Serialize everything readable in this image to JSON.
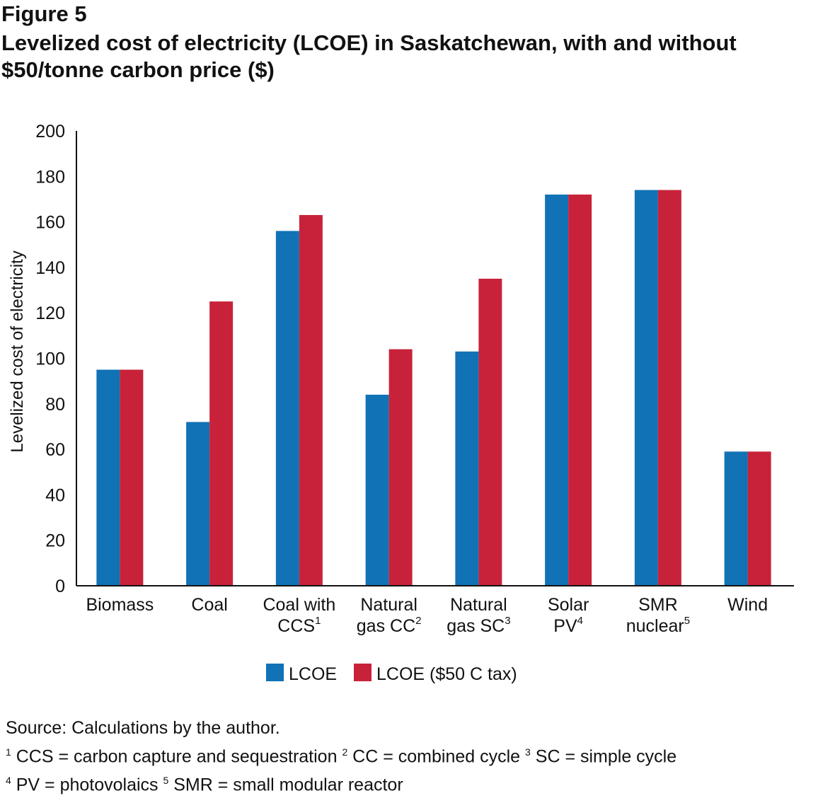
{
  "figure_label": "Figure 5",
  "chart_data": {
    "type": "bar",
    "title": "Levelized cost of electricity (LCOE) in Saskatchewan, with and without $50/tonne carbon price ($)",
    "ylabel": "Levelized cost of electricity",
    "xlabel": "",
    "ylim": [
      0,
      200
    ],
    "yticks": [
      0,
      20,
      40,
      60,
      80,
      100,
      120,
      140,
      160,
      180,
      200
    ],
    "categories": [
      {
        "lines": [
          "Biomass"
        ],
        "sup": ""
      },
      {
        "lines": [
          "Coal"
        ],
        "sup": ""
      },
      {
        "lines": [
          "Coal with",
          "CCS"
        ],
        "sup": "1"
      },
      {
        "lines": [
          "Natural",
          "gas CC"
        ],
        "sup": "2"
      },
      {
        "lines": [
          "Natural",
          "gas SC"
        ],
        "sup": "3"
      },
      {
        "lines": [
          "Solar",
          "PV"
        ],
        "sup": "4"
      },
      {
        "lines": [
          "SMR",
          "nuclear"
        ],
        "sup": "5"
      },
      {
        "lines": [
          "Wind"
        ],
        "sup": ""
      }
    ],
    "series": [
      {
        "name": "LCOE",
        "color": "#1172b6",
        "values": [
          95,
          72,
          156,
          84,
          103,
          172,
          174,
          59
        ]
      },
      {
        "name": "LCOE ($50 C tax)",
        "color": "#c8223a",
        "values": [
          95,
          125,
          163,
          104,
          135,
          172,
          174,
          59
        ]
      }
    ],
    "legend_position": "bottom",
    "grid": false
  },
  "notes": {
    "source": "Source: Calculations by the author.",
    "fn1_num": "1",
    "fn1_text": " CCS = carbon capture and sequestration ",
    "fn2_num": "2",
    "fn2_text": " CC = combined cycle ",
    "fn3_num": "3",
    "fn3_text": " SC = simple cycle",
    "fn4_num": "4",
    "fn4_text": " PV = photovolaics ",
    "fn5_num": "5",
    "fn5_text": " SMR = small modular reactor"
  }
}
